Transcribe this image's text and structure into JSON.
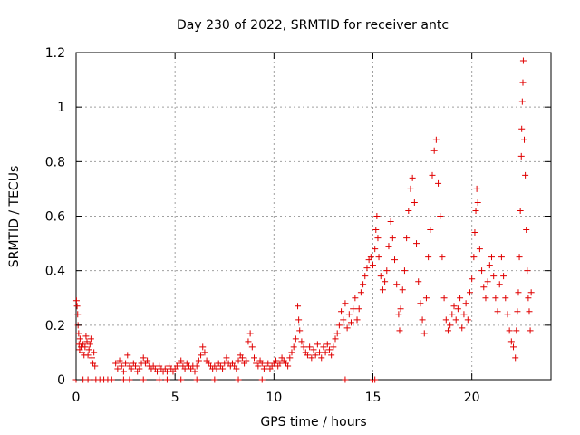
{
  "chart_data": {
    "type": "scatter",
    "title": "Day 230 of 2022, SRMTID for receiver antc",
    "xlabel": "GPS time / hours",
    "ylabel": "SRMTID / TECUs",
    "xlim": [
      0,
      24
    ],
    "ylim": [
      0,
      1.2
    ],
    "xticks": [
      0,
      5,
      10,
      15,
      20
    ],
    "yticks": [
      0,
      0.2,
      0.4,
      0.6,
      0.8,
      1,
      1.2
    ],
    "xtick_labels": [
      "0",
      "5",
      "10",
      "15",
      "20"
    ],
    "ytick_labels": [
      "0",
      "0.2",
      "0.4",
      "0.6",
      "0.8",
      "1",
      "1.2"
    ],
    "grid": true,
    "marker": "plus",
    "series": [
      {
        "name": "SRMTID",
        "color": "#e00000",
        "points": [
          [
            0.02,
            0.29
          ],
          [
            0.05,
            0.27
          ],
          [
            0.08,
            0.24
          ],
          [
            0.1,
            0.2
          ],
          [
            0.13,
            0.17
          ],
          [
            0.15,
            0.13
          ],
          [
            0.18,
            0.11
          ],
          [
            0.2,
            0.15
          ],
          [
            0.25,
            0.12
          ],
          [
            0.3,
            0.1
          ],
          [
            0.35,
            0.13
          ],
          [
            0.4,
            0.09
          ],
          [
            0.45,
            0.12
          ],
          [
            0.5,
            0.16
          ],
          [
            0.55,
            0.14
          ],
          [
            0.6,
            0.09
          ],
          [
            0.65,
            0.11
          ],
          [
            0.7,
            0.13
          ],
          [
            0.75,
            0.15
          ],
          [
            0.8,
            0.08
          ],
          [
            0.85,
            0.06
          ],
          [
            0.9,
            0.1
          ],
          [
            0.95,
            0.05
          ],
          [
            0.0,
            0.0
          ],
          [
            0.35,
            0.0
          ],
          [
            0.6,
            0.0
          ],
          [
            1.0,
            0.0
          ],
          [
            1.2,
            0.0
          ],
          [
            1.4,
            0.0
          ],
          [
            1.6,
            0.0
          ],
          [
            1.8,
            0.0
          ],
          [
            2.4,
            0.0
          ],
          [
            2.7,
            0.0
          ],
          [
            3.4,
            0.0
          ],
          [
            4.2,
            0.0
          ],
          [
            4.6,
            0.0
          ],
          [
            5.3,
            0.0
          ],
          [
            6.1,
            0.0
          ],
          [
            7.0,
            0.0
          ],
          [
            8.2,
            0.0
          ],
          [
            9.4,
            0.0
          ],
          [
            13.6,
            0.0
          ],
          [
            15.0,
            0.0
          ],
          [
            15.1,
            0.0
          ],
          [
            2.0,
            0.06
          ],
          [
            2.1,
            0.04
          ],
          [
            2.2,
            0.07
          ],
          [
            2.3,
            0.05
          ],
          [
            2.4,
            0.03
          ],
          [
            2.5,
            0.06
          ],
          [
            2.6,
            0.09
          ],
          [
            2.7,
            0.05
          ],
          [
            2.8,
            0.04
          ],
          [
            2.9,
            0.06
          ],
          [
            3.0,
            0.05
          ],
          [
            3.1,
            0.03
          ],
          [
            3.2,
            0.04
          ],
          [
            3.3,
            0.06
          ],
          [
            3.4,
            0.08
          ],
          [
            3.5,
            0.06
          ],
          [
            3.6,
            0.07
          ],
          [
            3.7,
            0.05
          ],
          [
            3.8,
            0.04
          ],
          [
            3.9,
            0.05
          ],
          [
            4.0,
            0.04
          ],
          [
            4.1,
            0.03
          ],
          [
            4.2,
            0.05
          ],
          [
            4.3,
            0.04
          ],
          [
            4.4,
            0.03
          ],
          [
            4.5,
            0.04
          ],
          [
            4.6,
            0.03
          ],
          [
            4.7,
            0.05
          ],
          [
            4.8,
            0.04
          ],
          [
            4.9,
            0.03
          ],
          [
            5.0,
            0.04
          ],
          [
            5.1,
            0.05
          ],
          [
            5.2,
            0.06
          ],
          [
            5.3,
            0.07
          ],
          [
            5.4,
            0.05
          ],
          [
            5.5,
            0.04
          ],
          [
            5.6,
            0.06
          ],
          [
            5.7,
            0.05
          ],
          [
            5.8,
            0.04
          ],
          [
            5.9,
            0.05
          ],
          [
            6.0,
            0.03
          ],
          [
            6.1,
            0.05
          ],
          [
            6.2,
            0.07
          ],
          [
            6.3,
            0.09
          ],
          [
            6.4,
            0.12
          ],
          [
            6.5,
            0.1
          ],
          [
            6.6,
            0.07
          ],
          [
            6.7,
            0.06
          ],
          [
            6.8,
            0.05
          ],
          [
            6.9,
            0.04
          ],
          [
            7.0,
            0.05
          ],
          [
            7.1,
            0.04
          ],
          [
            7.2,
            0.06
          ],
          [
            7.3,
            0.05
          ],
          [
            7.4,
            0.04
          ],
          [
            7.5,
            0.06
          ],
          [
            7.6,
            0.08
          ],
          [
            7.7,
            0.06
          ],
          [
            7.8,
            0.05
          ],
          [
            7.9,
            0.06
          ],
          [
            8.0,
            0.05
          ],
          [
            8.1,
            0.04
          ],
          [
            8.2,
            0.07
          ],
          [
            8.3,
            0.09
          ],
          [
            8.4,
            0.08
          ],
          [
            8.5,
            0.06
          ],
          [
            8.6,
            0.07
          ],
          [
            8.7,
            0.14
          ],
          [
            8.8,
            0.17
          ],
          [
            8.9,
            0.12
          ],
          [
            9.0,
            0.08
          ],
          [
            9.1,
            0.06
          ],
          [
            9.2,
            0.05
          ],
          [
            9.3,
            0.07
          ],
          [
            9.4,
            0.06
          ],
          [
            9.5,
            0.04
          ],
          [
            9.6,
            0.05
          ],
          [
            9.7,
            0.06
          ],
          [
            9.8,
            0.04
          ],
          [
            9.9,
            0.05
          ],
          [
            10.0,
            0.06
          ],
          [
            10.1,
            0.07
          ],
          [
            10.2,
            0.05
          ],
          [
            10.3,
            0.06
          ],
          [
            10.4,
            0.08
          ],
          [
            10.5,
            0.07
          ],
          [
            10.6,
            0.06
          ],
          [
            10.7,
            0.05
          ],
          [
            10.8,
            0.08
          ],
          [
            10.9,
            0.1
          ],
          [
            11.0,
            0.12
          ],
          [
            11.1,
            0.15
          ],
          [
            11.2,
            0.27
          ],
          [
            11.25,
            0.22
          ],
          [
            11.3,
            0.18
          ],
          [
            11.4,
            0.14
          ],
          [
            11.5,
            0.12
          ],
          [
            11.6,
            0.1
          ],
          [
            11.7,
            0.09
          ],
          [
            11.8,
            0.12
          ],
          [
            11.9,
            0.08
          ],
          [
            12.0,
            0.11
          ],
          [
            12.1,
            0.09
          ],
          [
            12.2,
            0.13
          ],
          [
            12.3,
            0.1
          ],
          [
            12.4,
            0.08
          ],
          [
            12.5,
            0.12
          ],
          [
            12.6,
            0.1
          ],
          [
            12.7,
            0.13
          ],
          [
            12.8,
            0.11
          ],
          [
            12.9,
            0.09
          ],
          [
            13.0,
            0.12
          ],
          [
            13.1,
            0.15
          ],
          [
            13.2,
            0.17
          ],
          [
            13.3,
            0.2
          ],
          [
            13.4,
            0.25
          ],
          [
            13.5,
            0.22
          ],
          [
            13.6,
            0.28
          ],
          [
            13.7,
            0.19
          ],
          [
            13.8,
            0.24
          ],
          [
            13.9,
            0.21
          ],
          [
            14.0,
            0.26
          ],
          [
            14.1,
            0.3
          ],
          [
            14.2,
            0.22
          ],
          [
            14.3,
            0.26
          ],
          [
            14.4,
            0.32
          ],
          [
            14.5,
            0.35
          ],
          [
            14.6,
            0.38
          ],
          [
            14.7,
            0.41
          ],
          [
            14.8,
            0.44
          ],
          [
            14.9,
            0.45
          ],
          [
            15.0,
            0.42
          ],
          [
            15.1,
            0.48
          ],
          [
            15.15,
            0.55
          ],
          [
            15.2,
            0.6
          ],
          [
            15.25,
            0.52
          ],
          [
            15.3,
            0.45
          ],
          [
            15.4,
            0.38
          ],
          [
            15.5,
            0.33
          ],
          [
            15.6,
            0.36
          ],
          [
            15.7,
            0.4
          ],
          [
            15.8,
            0.49
          ],
          [
            15.9,
            0.58
          ],
          [
            16.0,
            0.52
          ],
          [
            16.1,
            0.44
          ],
          [
            16.2,
            0.35
          ],
          [
            16.3,
            0.24
          ],
          [
            16.35,
            0.18
          ],
          [
            16.4,
            0.26
          ],
          [
            16.5,
            0.33
          ],
          [
            16.6,
            0.4
          ],
          [
            16.7,
            0.52
          ],
          [
            16.8,
            0.62
          ],
          [
            16.9,
            0.7
          ],
          [
            17.0,
            0.74
          ],
          [
            17.1,
            0.65
          ],
          [
            17.2,
            0.5
          ],
          [
            17.3,
            0.36
          ],
          [
            17.4,
            0.28
          ],
          [
            17.5,
            0.22
          ],
          [
            17.6,
            0.17
          ],
          [
            17.7,
            0.3
          ],
          [
            17.8,
            0.45
          ],
          [
            17.9,
            0.55
          ],
          [
            18.0,
            0.75
          ],
          [
            18.1,
            0.84
          ],
          [
            18.2,
            0.88
          ],
          [
            18.3,
            0.72
          ],
          [
            18.4,
            0.6
          ],
          [
            18.5,
            0.45
          ],
          [
            18.6,
            0.3
          ],
          [
            18.7,
            0.22
          ],
          [
            18.8,
            0.18
          ],
          [
            18.9,
            0.2
          ],
          [
            19.0,
            0.24
          ],
          [
            19.1,
            0.27
          ],
          [
            19.2,
            0.22
          ],
          [
            19.3,
            0.26
          ],
          [
            19.4,
            0.3
          ],
          [
            19.5,
            0.19
          ],
          [
            19.6,
            0.24
          ],
          [
            19.7,
            0.28
          ],
          [
            19.8,
            0.22
          ],
          [
            19.9,
            0.32
          ],
          [
            20.0,
            0.37
          ],
          [
            20.1,
            0.45
          ],
          [
            20.15,
            0.54
          ],
          [
            20.2,
            0.62
          ],
          [
            20.25,
            0.7
          ],
          [
            20.3,
            0.65
          ],
          [
            20.4,
            0.48
          ],
          [
            20.5,
            0.4
          ],
          [
            20.6,
            0.34
          ],
          [
            20.7,
            0.3
          ],
          [
            20.8,
            0.36
          ],
          [
            20.9,
            0.42
          ],
          [
            21.0,
            0.45
          ],
          [
            21.1,
            0.38
          ],
          [
            21.2,
            0.3
          ],
          [
            21.3,
            0.25
          ],
          [
            21.4,
            0.35
          ],
          [
            21.5,
            0.45
          ],
          [
            21.6,
            0.38
          ],
          [
            21.7,
            0.3
          ],
          [
            21.8,
            0.24
          ],
          [
            21.9,
            0.18
          ],
          [
            22.0,
            0.14
          ],
          [
            22.1,
            0.12
          ],
          [
            22.2,
            0.08
          ],
          [
            22.25,
            0.18
          ],
          [
            22.3,
            0.25
          ],
          [
            22.35,
            0.32
          ],
          [
            22.4,
            0.45
          ],
          [
            22.45,
            0.62
          ],
          [
            22.5,
            0.82
          ],
          [
            22.52,
            0.92
          ],
          [
            22.55,
            1.02
          ],
          [
            22.58,
            1.09
          ],
          [
            22.6,
            1.17
          ],
          [
            22.65,
            0.88
          ],
          [
            22.7,
            0.75
          ],
          [
            22.75,
            0.55
          ],
          [
            22.8,
            0.4
          ],
          [
            22.85,
            0.3
          ],
          [
            22.9,
            0.25
          ],
          [
            22.95,
            0.18
          ],
          [
            23.0,
            0.32
          ]
        ]
      }
    ]
  }
}
